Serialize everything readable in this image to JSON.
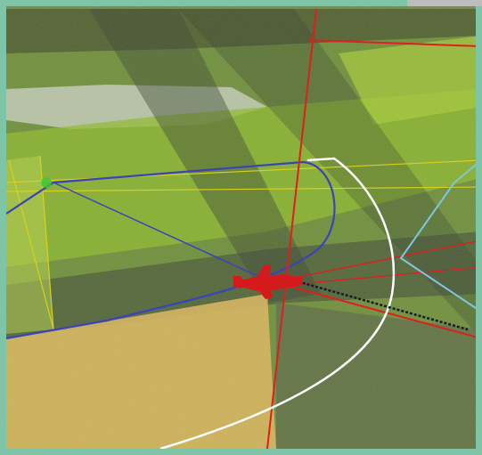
{
  "view": {
    "type": "aerial-map-overlay",
    "frame_color": "#7fc4a7"
  },
  "terrain": {
    "base_colors": [
      "#6f8f3a",
      "#8fb13a",
      "#a9c23c",
      "#c7b064",
      "#5d6b3e",
      "#98a47a"
    ],
    "upper_left_patch_color": "#c9cfc0",
    "lower_left_field_color": "#d8b55c"
  },
  "overlays": {
    "aircraft": {
      "icon": "airplane-icon",
      "color": "#d41a1a"
    },
    "paths": [
      {
        "name": "blue-boundary",
        "color": "#3a44b8"
      },
      {
        "name": "white-curve",
        "color": "#ffffff"
      },
      {
        "name": "red-grid-lines",
        "color": "#e01e1e"
      },
      {
        "name": "yellow-track-lines",
        "color": "#d8d020"
      },
      {
        "name": "cyan-boundary",
        "color": "#7fc7e0"
      },
      {
        "name": "dark-dashed-trail",
        "color": "#1a1a2a"
      },
      {
        "name": "green-waypoint",
        "color": "#3cc83c"
      }
    ]
  }
}
